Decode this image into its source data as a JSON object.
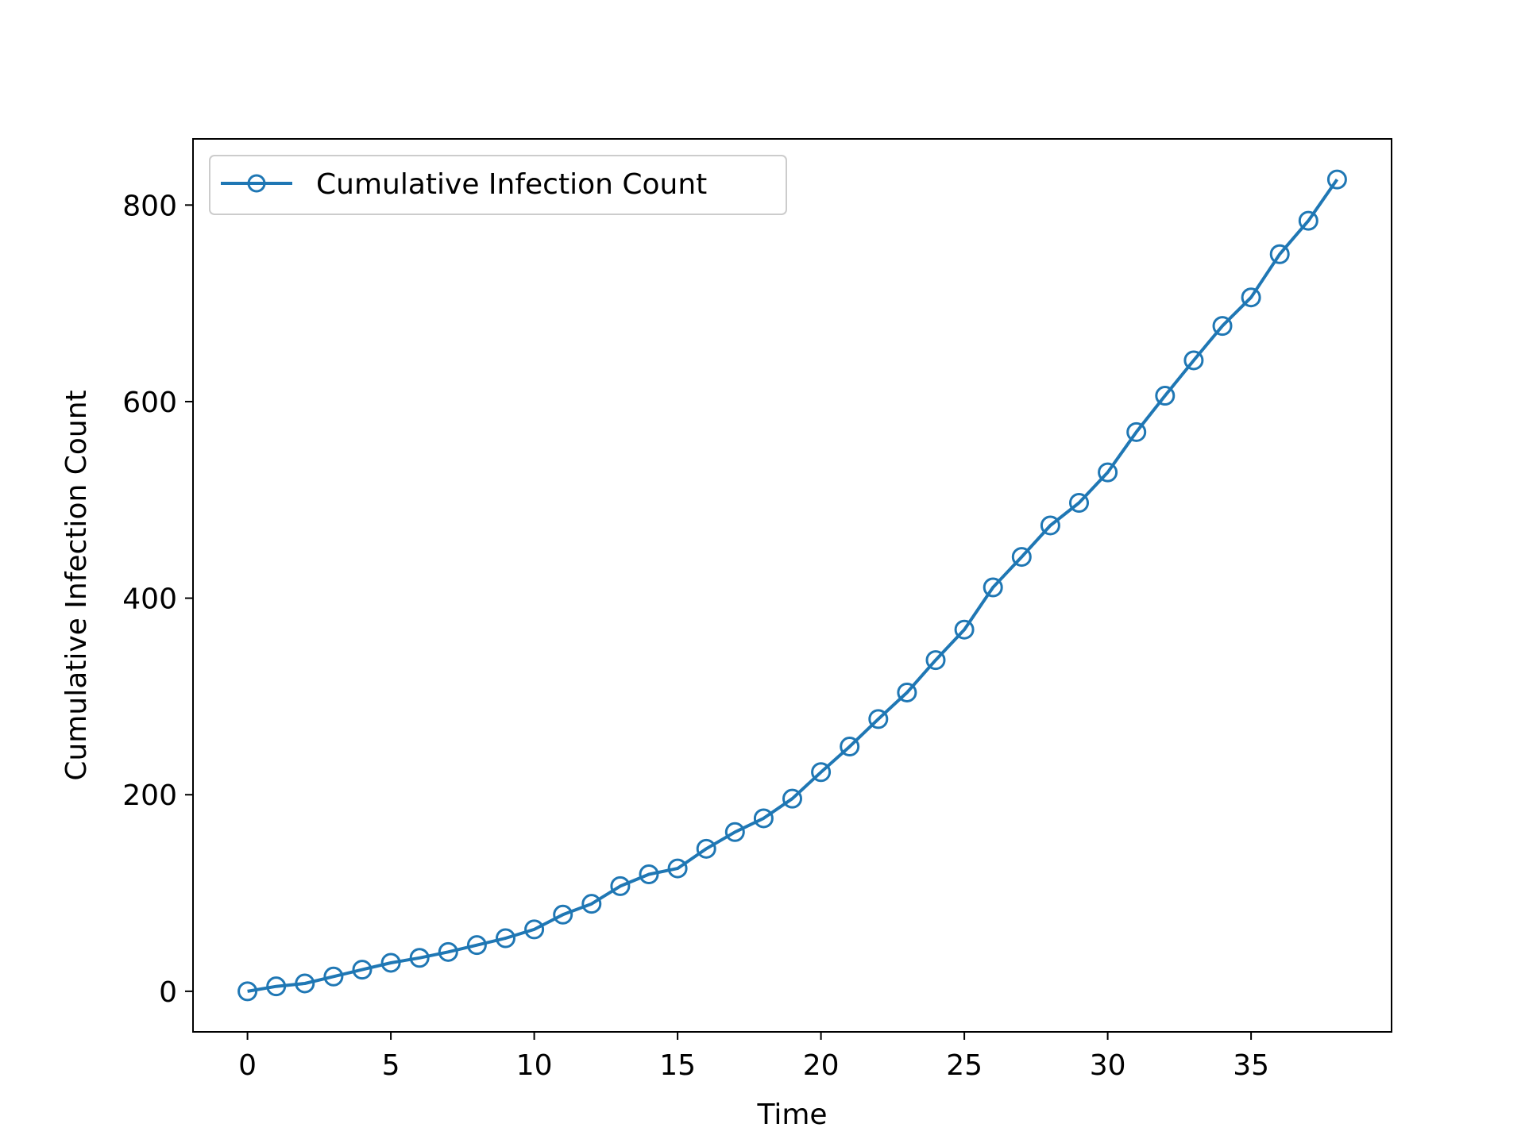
{
  "chart_data": {
    "type": "line",
    "title": "",
    "xlabel": "Time",
    "ylabel": "Cumulative Infection Count",
    "xlim": [
      -1.9,
      39.9
    ],
    "ylim": [
      -41.3,
      867.3
    ],
    "xticks": [
      0,
      5,
      10,
      15,
      20,
      25,
      30,
      35
    ],
    "yticks": [
      0,
      200,
      400,
      600,
      800
    ],
    "grid": false,
    "legend_position": "upper left",
    "colors": {
      "line": "#1f77b4",
      "axes": "#000000",
      "legend_border": "#cccccc"
    },
    "marker": "open-circle",
    "series": [
      {
        "name": "Cumulative Infection Count",
        "x": [
          0,
          1,
          2,
          3,
          4,
          5,
          6,
          7,
          8,
          9,
          10,
          11,
          12,
          13,
          14,
          15,
          16,
          17,
          18,
          19,
          20,
          21,
          22,
          23,
          24,
          25,
          26,
          27,
          28,
          29,
          30,
          31,
          32,
          33,
          34,
          35,
          36,
          37,
          38
        ],
        "y": [
          0,
          5,
          8,
          15,
          22,
          29,
          34,
          40,
          47,
          54,
          63,
          78,
          89,
          107,
          119,
          125,
          145,
          162,
          176,
          196,
          223,
          249,
          277,
          304,
          337,
          368,
          411,
          442,
          474,
          497,
          528,
          569,
          606,
          642,
          677,
          706,
          750,
          784,
          826
        ]
      }
    ]
  }
}
